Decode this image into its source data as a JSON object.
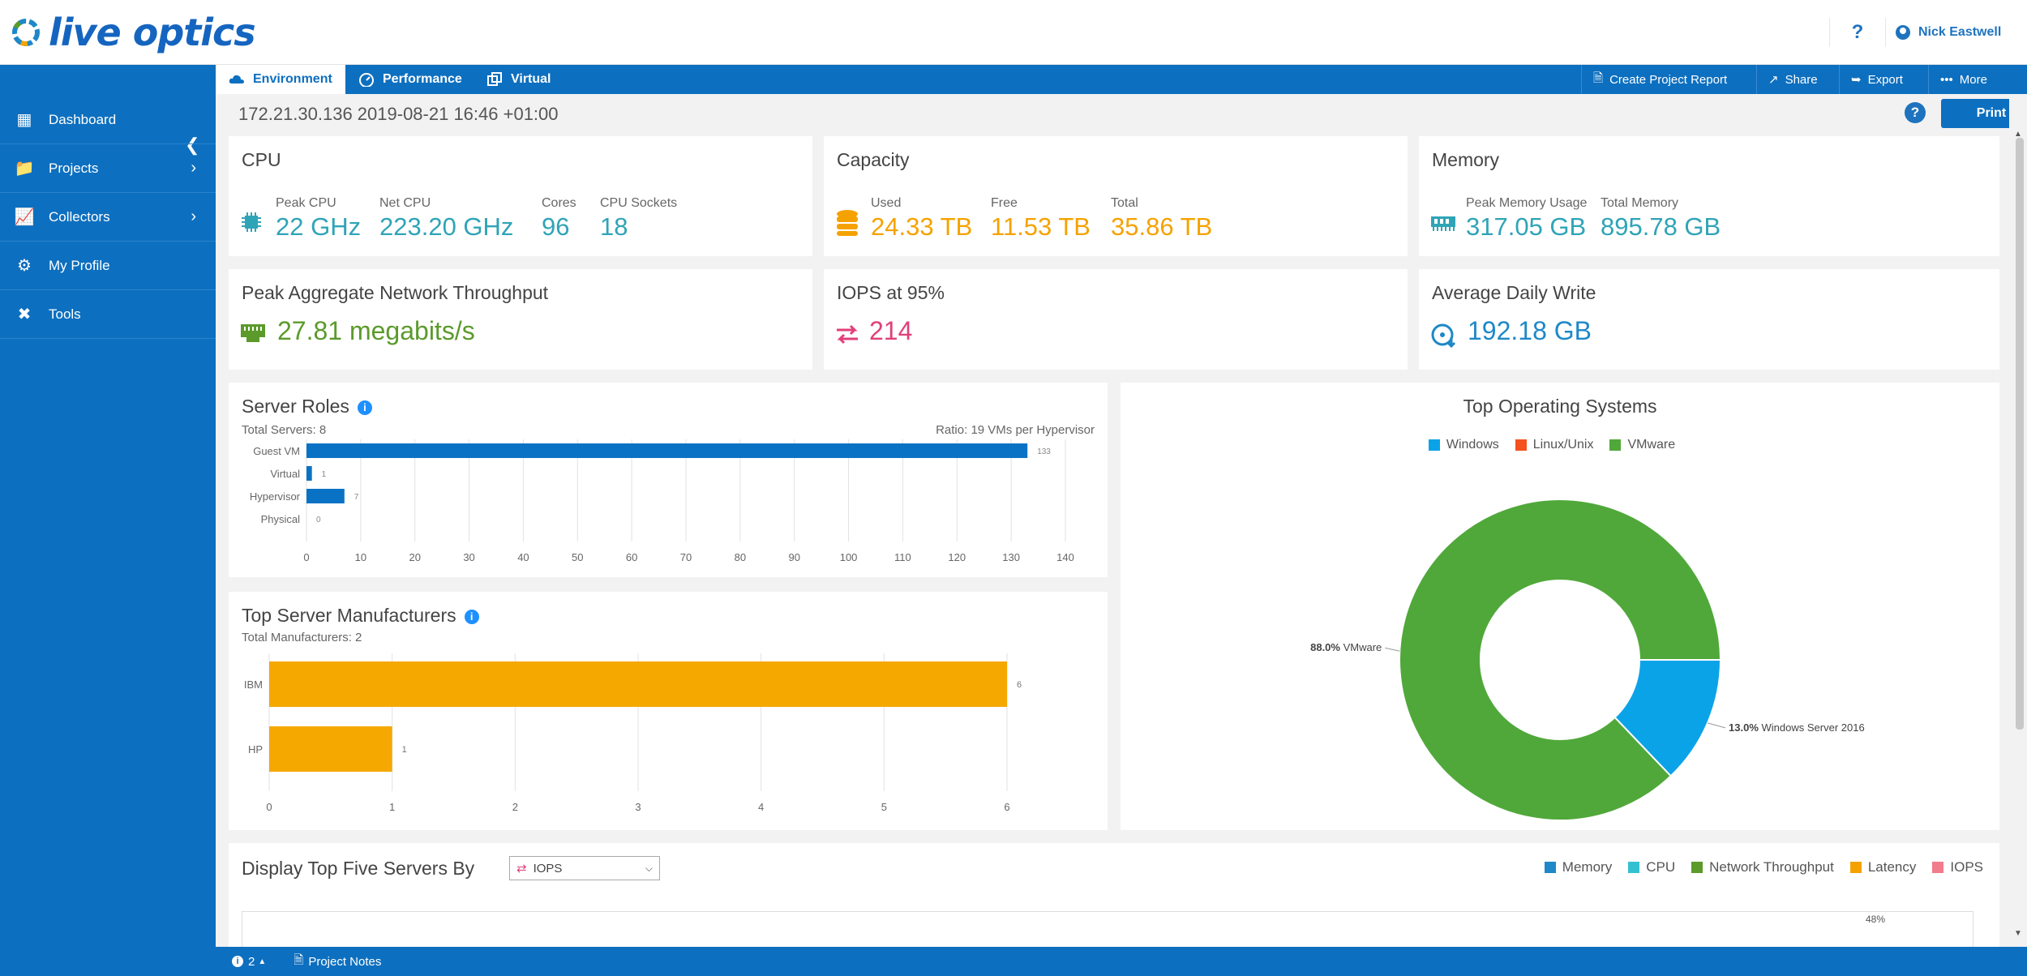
{
  "header": {
    "logo_text": "live optics",
    "help": "?",
    "user_name": "Nick Eastwell"
  },
  "toolbar": {
    "tabs": [
      {
        "label": "Environment",
        "icon": "cloud-icon"
      },
      {
        "label": "Performance",
        "icon": "gauge-icon"
      },
      {
        "label": "Virtual",
        "icon": "virtual-icon"
      }
    ],
    "actions": [
      {
        "label": "Create Project Report",
        "icon": "document-icon"
      },
      {
        "label": "Share",
        "icon": "share-icon"
      },
      {
        "label": "Export",
        "icon": "export-icon"
      },
      {
        "label": "More",
        "icon": "ellipsis-icon"
      }
    ]
  },
  "sidebar": {
    "items": [
      {
        "label": "Dashboard",
        "icon": "dashboard-icon"
      },
      {
        "label": "Projects",
        "icon": "folder-icon"
      },
      {
        "label": "Collectors",
        "icon": "collector-icon"
      },
      {
        "label": "My Profile",
        "icon": "gear-icon"
      },
      {
        "label": "Tools",
        "icon": "tools-icon"
      }
    ]
  },
  "context_line": "172.21.30.136 2019-08-21 16:46 +01:00",
  "print_label": "Print",
  "help_label": "?",
  "cards": {
    "cpu": {
      "title": "CPU",
      "peak_cpu_label": "Peak CPU",
      "peak_cpu": "22 GHz",
      "net_cpu_label": "Net CPU",
      "net_cpu": "223.20 GHz",
      "cores_label": "Cores",
      "cores": "96",
      "sockets_label": "CPU Sockets",
      "sockets": "18"
    },
    "capacity": {
      "title": "Capacity",
      "used_label": "Used",
      "used": "24.33 TB",
      "free_label": "Free",
      "free": "11.53 TB",
      "total_label": "Total",
      "total": "35.86 TB"
    },
    "memory": {
      "title": "Memory",
      "peak_label": "Peak Memory Usage",
      "peak": "317.05 GB",
      "total_label": "Total Memory",
      "total": "895.78 GB"
    },
    "network": {
      "title": "Peak Aggregate Network Throughput",
      "value": "27.81 megabits/s"
    },
    "iops": {
      "title": "IOPS at 95%",
      "value": "214"
    },
    "write": {
      "title": "Average Daily Write",
      "value": "192.18 GB"
    }
  },
  "server_roles": {
    "title": "Server Roles",
    "total_label": "Total Servers: 8",
    "ratio_label": "Ratio: 19 VMs per Hypervisor"
  },
  "manufacturers": {
    "title": "Top Server Manufacturers",
    "total_label": "Total Manufacturers: 2"
  },
  "os": {
    "title": "Top Operating Systems",
    "slice_labels": [
      {
        "pct": "88.0%",
        "name": "VMware"
      },
      {
        "pct": "13.0%",
        "name": "Windows Server 2016"
      }
    ]
  },
  "bottom": {
    "title": "Display Top Five Servers By",
    "select_value": "IOPS",
    "legend": [
      {
        "label": "Memory",
        "color": "#1e88c8"
      },
      {
        "label": "CPU",
        "color": "#33c1d1"
      },
      {
        "label": "Network Throughput",
        "color": "#5b9a2b"
      },
      {
        "label": "Latency",
        "color": "#f5a200"
      },
      {
        "label": "IOPS",
        "color": "#f07c8c"
      }
    ],
    "bar_label": "48%",
    "bar_value": 48
  },
  "statusbar": {
    "notification": "2",
    "notes_label": "Project Notes"
  },
  "colors": {
    "brand_blue": "#0d6fbf",
    "bar_blue": "#0a72c4",
    "bar_orange": "#f5a800",
    "pie_green": "#50a83a",
    "pie_blue": "#0aa3e8"
  },
  "chart_data": [
    {
      "type": "bar",
      "orientation": "horizontal",
      "categories": [
        "Guest VM",
        "Virtual",
        "Hypervisor",
        "Physical"
      ],
      "values": [
        133,
        1,
        7,
        0
      ],
      "xlim": [
        0,
        140
      ],
      "xticks": [
        0,
        10,
        20,
        30,
        40,
        50,
        60,
        70,
        80,
        90,
        100,
        110,
        120,
        130,
        140
      ]
    },
    {
      "type": "bar",
      "orientation": "horizontal",
      "categories": [
        "IBM",
        "HP"
      ],
      "values": [
        6,
        1
      ],
      "xlim": [
        0,
        6
      ],
      "xticks": [
        0,
        1,
        2,
        3,
        4,
        5,
        6
      ]
    },
    {
      "type": "pie",
      "donut": true,
      "legend": [
        "Windows",
        "Linux/Unix",
        "VMware"
      ],
      "legend_colors": [
        "#0aa3e8",
        "#f4511e",
        "#50a83a"
      ],
      "slices": [
        {
          "name": "VMware",
          "value": 88.0,
          "color": "#50a83a"
        },
        {
          "name": "Windows Server 2016",
          "value": 13.0,
          "color": "#0aa3e8"
        }
      ]
    }
  ]
}
